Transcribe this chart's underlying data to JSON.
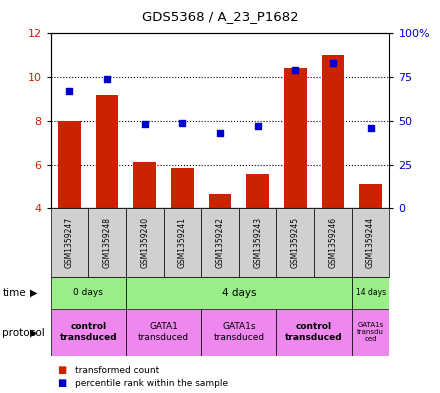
{
  "title": "GDS5368 / A_23_P1682",
  "samples": [
    "GSM1359247",
    "GSM1359248",
    "GSM1359240",
    "GSM1359241",
    "GSM1359242",
    "GSM1359243",
    "GSM1359245",
    "GSM1359246",
    "GSM1359244"
  ],
  "transformed_counts": [
    8.0,
    9.2,
    6.1,
    5.85,
    4.65,
    5.55,
    10.4,
    11.0,
    5.1
  ],
  "percentile_ranks": [
    67,
    74,
    48,
    49,
    43,
    47,
    79,
    83,
    46
  ],
  "ylim_left": [
    4,
    12
  ],
  "ylim_right": [
    0,
    100
  ],
  "yticks_left": [
    4,
    6,
    8,
    10,
    12
  ],
  "yticks_right": [
    0,
    25,
    50,
    75,
    100
  ],
  "yticklabels_right": [
    "0",
    "25",
    "50",
    "75",
    "100%"
  ],
  "bar_color": "#cc2200",
  "scatter_color": "#0000cc",
  "bar_bottom": 4,
  "time_groups": [
    {
      "label": "0 days",
      "start": 0,
      "end": 2
    },
    {
      "label": "4 days",
      "start": 2,
      "end": 8
    },
    {
      "label": "14 days",
      "start": 8,
      "end": 9
    }
  ],
  "protocol_groups": [
    {
      "label": "control\ntransduced",
      "start": 0,
      "end": 2,
      "bold": true
    },
    {
      "label": "GATA1\ntransduced",
      "start": 2,
      "end": 4,
      "bold": false
    },
    {
      "label": "GATA1s\ntransduced",
      "start": 4,
      "end": 6,
      "bold": false
    },
    {
      "label": "control\ntransduced",
      "start": 6,
      "end": 8,
      "bold": true
    },
    {
      "label": "GATA1s\ntransdu\nced",
      "start": 8,
      "end": 9,
      "bold": false
    }
  ],
  "time_color": "#99ee88",
  "protocol_color": "#ee88ee",
  "sample_box_color": "#d0d0d0",
  "xlabel_color_left": "#cc2200",
  "xlabel_color_right": "#0000cc"
}
